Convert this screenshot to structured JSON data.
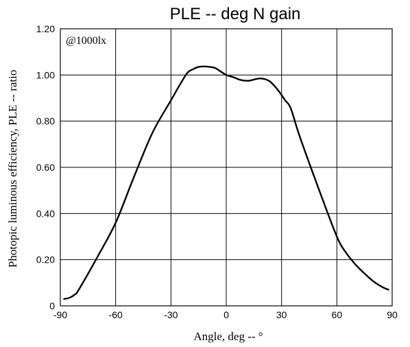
{
  "chart_data": {
    "type": "line",
    "title": "PLE -- deg  N gain",
    "xlabel": "Angle, deg -- °",
    "ylabel": "Photopic luminous efficiency, PLE -- ratio",
    "annotation": "@1000lx",
    "xlim": [
      -90,
      90
    ],
    "ylim": [
      0,
      1.2
    ],
    "xticks": [
      -90,
      -60,
      -30,
      0,
      30,
      60,
      90
    ],
    "xtick_labels": [
      "-90",
      "-60",
      "-30",
      "0",
      "30",
      "60",
      "90"
    ],
    "yticks": [
      0,
      0.2,
      0.4,
      0.6,
      0.8,
      1.0,
      1.2
    ],
    "ytick_labels": [
      "0",
      "0.20",
      "0.40",
      "0.60",
      "0.80",
      "1.00",
      "1.20"
    ],
    "grid": true,
    "series": [
      {
        "x": [
          -88,
          -85,
          -82,
          -80,
          -70,
          -60,
          -50,
          -40,
          -30,
          -25,
          -21,
          -18,
          -15,
          -12,
          -9,
          -6,
          -3,
          0,
          4,
          8,
          12,
          15,
          18,
          21,
          24,
          28,
          32,
          35,
          40,
          50,
          60,
          65,
          70,
          75,
          80,
          85,
          88
        ],
        "y": [
          0.03,
          0.035,
          0.05,
          0.07,
          0.21,
          0.36,
          0.56,
          0.75,
          0.89,
          0.96,
          1.01,
          1.025,
          1.035,
          1.037,
          1.035,
          1.03,
          1.015,
          1.0,
          0.99,
          0.978,
          0.975,
          0.98,
          0.985,
          0.982,
          0.97,
          0.935,
          0.89,
          0.855,
          0.73,
          0.51,
          0.3,
          0.23,
          0.18,
          0.14,
          0.105,
          0.08,
          0.07
        ]
      }
    ]
  }
}
